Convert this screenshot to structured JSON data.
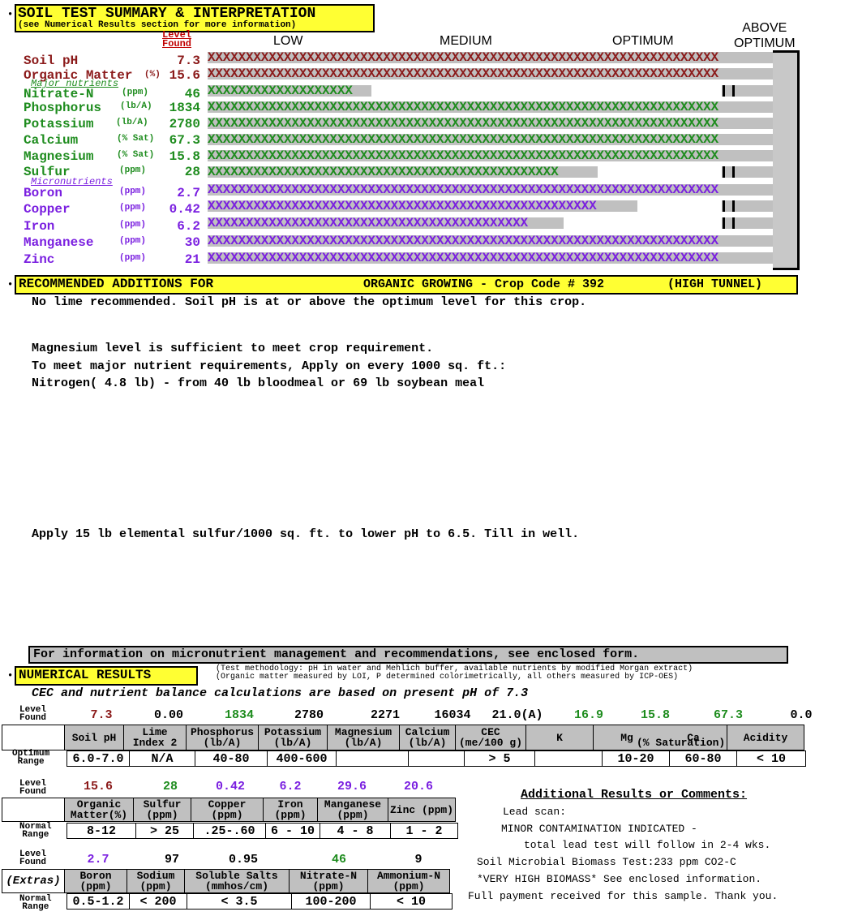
{
  "colors": {
    "header_bg": "#ffff33",
    "red": "#c00000",
    "maroon": "#8b1a1a",
    "green": "#1e8c1e",
    "purple": "#7a1fe0",
    "gray": "#c0c0c0"
  },
  "summary": {
    "title": "SOIL TEST SUMMARY & INTERPRETATION",
    "subtitle": "(see Numerical Results section for more information)",
    "level_found": [
      "Level",
      "Found"
    ],
    "scale": {
      "low": "LOW",
      "medium": "MEDIUM",
      "optimum": "OPTIMUM",
      "above1": "ABOVE",
      "above2": "OPTIMUM"
    },
    "group_major": "Major nutrients",
    "group_micro": "Micronutrients",
    "rows": [
      {
        "name": "Soil pH",
        "unit": "",
        "value": "7.3",
        "color": "maroon",
        "fill": 1.0,
        "xs": "XXXXXXXXXXXXXXXXXXXXXXXXXXXXXXXXXXXXXXXXXXXXXXXXXXXXXXXXXXXXXXXXXXX"
      },
      {
        "name": "Organic Matter",
        "unit": "(%)",
        "value": "15.6",
        "color": "maroon",
        "fill": 1.0,
        "xs": "XXXXXXXXXXXXXXXXXXXXXXXXXXXXXXXXXXXXXXXXXXXXXXXXXXXXXXXXXXXXXXXXXXX"
      },
      {
        "name": "Nitrate-N",
        "unit": "(ppm)",
        "value": "46",
        "color": "green",
        "fill": 0.29,
        "xs": "XXXXXXXXXXXXXXXXXXX"
      },
      {
        "name": "Phosphorus",
        "unit": "(lb/A)",
        "value": "1834",
        "color": "green",
        "fill": 1.0,
        "xs": "XXXXXXXXXXXXXXXXXXXXXXXXXXXXXXXXXXXXXXXXXXXXXXXXXXXXXXXXXXXXXXXXXXX"
      },
      {
        "name": "Potassium",
        "unit": "(lb/A)",
        "value": "2780",
        "color": "green",
        "fill": 1.0,
        "xs": "XXXXXXXXXXXXXXXXXXXXXXXXXXXXXXXXXXXXXXXXXXXXXXXXXXXXXXXXXXXXXXXXXXX"
      },
      {
        "name": "Calcium",
        "unit": "(% Sat)",
        "value": "67.3",
        "color": "green",
        "fill": 1.0,
        "xs": "XXXXXXXXXXXXXXXXXXXXXXXXXXXXXXXXXXXXXXXXXXXXXXXXXXXXXXXXXXXXXXXXXXX"
      },
      {
        "name": "Magnesium",
        "unit": "(% Sat)",
        "value": "15.8",
        "color": "green",
        "fill": 1.0,
        "xs": "XXXXXXXXXXXXXXXXXXXXXXXXXXXXXXXXXXXXXXXXXXXXXXXXXXXXXXXXXXXXXXXXXXX"
      },
      {
        "name": "Sulfur",
        "unit": "(ppm)",
        "value": "28",
        "color": "green",
        "fill": 0.69,
        "xs": "XXXXXXXXXXXXXXXXXXXXXXXXXXXXXXXXXXXXXXXXXXXXXX"
      },
      {
        "name": "Boron",
        "unit": "(ppm)",
        "value": "2.7",
        "color": "purple",
        "fill": 1.0,
        "xs": "XXXXXXXXXXXXXXXXXXXXXXXXXXXXXXXXXXXXXXXXXXXXXXXXXXXXXXXXXXXXXXXXXXX"
      },
      {
        "name": "Copper",
        "unit": "(ppm)",
        "value": "0.42",
        "color": "purple",
        "fill": 0.76,
        "xs": "XXXXXXXXXXXXXXXXXXXXXXXXXXXXXXXXXXXXXXXXXXXXXXXXXXX"
      },
      {
        "name": "Iron",
        "unit": "(ppm)",
        "value": "6.2",
        "color": "purple",
        "fill": 0.63,
        "xs": "XXXXXXXXXXXXXXXXXXXXXXXXXXXXXXXXXXXXXXXXXX"
      },
      {
        "name": "Manganese",
        "unit": "(ppm)",
        "value": "30",
        "color": "purple",
        "fill": 1.0,
        "xs": "XXXXXXXXXXXXXXXXXXXXXXXXXXXXXXXXXXXXXXXXXXXXXXXXXXXXXXXXXXXXXXXXXXX"
      },
      {
        "name": "Zinc",
        "unit": "(ppm)",
        "value": "21",
        "color": "purple",
        "fill": 1.0,
        "xs": "XXXXXXXXXXXXXXXXXXXXXXXXXXXXXXXXXXXXXXXXXXXXXXXXXXXXXXXXXXXXXXXXXXX"
      }
    ]
  },
  "recommend": {
    "title": "RECOMMENDED ADDITIONS FOR",
    "crop": "ORGANIC GROWING - Crop Code # 392",
    "tunnel": "(HIGH TUNNEL)",
    "lines": [
      "No lime recommended. Soil pH is at or above the optimum level for this crop.",
      "Magnesium level is sufficient to meet crop requirement.",
      "To meet major nutrient requirements, Apply on every 1000 sq. ft.:",
      "Nitrogen( 4.8 lb) - from 40 lb bloodmeal or  69 lb soybean meal",
      "Apply 15 lb elemental sulfur/1000 sq. ft. to lower pH to 6.5. Till in well."
    ],
    "micro_note": "For information on micronutrient management and recommendations, see enclosed form."
  },
  "numerical": {
    "title": "NUMERICAL RESULTS",
    "method1": "(Test methodology: pH in water and Mehlich buffer, available nutrients by modified Morgan extract)",
    "method2": "(Organic matter measured by LOI, P determined colorimetrically, all others measured by ICP-OES)",
    "cec_note": "CEC and nutrient balance calculations are based on present pH of 7.3",
    "lbl_level": [
      "Level",
      "Found"
    ],
    "lbl_optimum": [
      "Optimum",
      "Range"
    ],
    "lbl_normal": [
      "Normal",
      "Range"
    ],
    "lbl_extras": "(Extras)",
    "t1": {
      "values": [
        "7.3",
        "0.00",
        "1834",
        "2780",
        "2271",
        "16034",
        "21.0(A)",
        "16.9",
        "15.8",
        "67.3",
        "0.0"
      ],
      "headers": [
        "Soil pH",
        "Lime Index 2",
        "Phosphorus (lb/A)",
        "Potassium (lb/A)",
        "Magnesium (lb/A)",
        "Calcium (lb/A)",
        "CEC (me/100 g)",
        "K",
        "Mg",
        "Ca",
        "Acidity"
      ],
      "sat_label": "(% Saturation)",
      "ranges": [
        "6.0-7.0",
        "N/A",
        "40-80",
        "400-600",
        "",
        "",
        "> 5",
        "",
        "10-20",
        "60-80",
        "< 10"
      ]
    },
    "t2": {
      "values": [
        "15.6",
        "28",
        "0.42",
        "6.2",
        "29.6",
        "20.6"
      ],
      "headers": [
        "Organic Matter(%)",
        "Sulfur (ppm)",
        "Copper (ppm)",
        "Iron (ppm)",
        "Manganese (ppm)",
        "Zinc (ppm)"
      ],
      "ranges": [
        "8-12",
        "> 25",
        ".25-.60",
        "6 - 10",
        "4 - 8",
        "1 - 2"
      ]
    },
    "t3": {
      "values": [
        "2.7",
        "97",
        "0.95",
        "46",
        "9"
      ],
      "headers": [
        "Boron (ppm)",
        "Sodium (ppm)",
        "Soluble Salts (mmhos/cm)",
        "Nitrate-N (ppm)",
        "Ammonium-N (ppm)"
      ],
      "ranges": [
        "0.5-1.2",
        "< 200",
        "< 3.5",
        "100-200",
        "< 10"
      ]
    }
  },
  "comments": {
    "title": "Additional Results or Comments:",
    "lines": [
      "Lead scan:",
      "MINOR CONTAMINATION INDICATED -",
      "total lead test will follow in 2-4 wks.",
      "Soil Microbial Biomass Test:233 ppm CO2-C",
      "*VERY HIGH BIOMASS* See enclosed information.",
      "Full payment received for this sample. Thank you."
    ]
  }
}
